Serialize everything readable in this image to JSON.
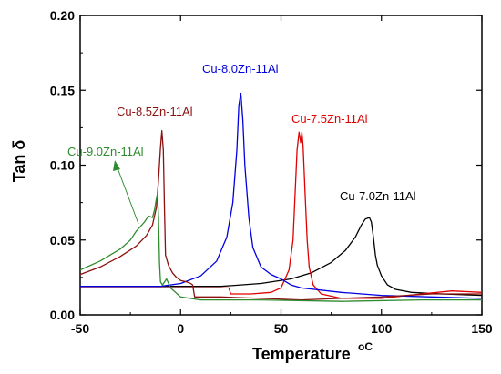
{
  "chart_data": {
    "type": "line",
    "title": "",
    "xlabel": "Temperature",
    "xlabel_unit": "oC",
    "ylabel": "Tan δ",
    "xlim": [
      -50,
      150
    ],
    "ylim": [
      0,
      0.2
    ],
    "xticks": [
      -50,
      0,
      50,
      100,
      150
    ],
    "yticks": [
      0.0,
      0.05,
      0.1,
      0.15,
      0.2
    ],
    "ytick_labels": [
      "0.00",
      "0.05",
      "0.10",
      "0.15",
      "0.20"
    ],
    "grid": false,
    "legend": "inline labels",
    "series": [
      {
        "name": "Cu-7.0Zn-11Al",
        "color": "#000000",
        "points": [
          [
            -50,
            0.019
          ],
          [
            -20,
            0.019
          ],
          [
            0,
            0.019
          ],
          [
            20,
            0.019
          ],
          [
            40,
            0.021
          ],
          [
            55,
            0.024
          ],
          [
            65,
            0.028
          ],
          [
            75,
            0.035
          ],
          [
            82,
            0.043
          ],
          [
            87,
            0.052
          ],
          [
            90,
            0.06
          ],
          [
            92,
            0.064
          ],
          [
            94,
            0.065
          ],
          [
            95,
            0.062
          ],
          [
            96,
            0.052
          ],
          [
            97,
            0.04
          ],
          [
            98,
            0.033
          ],
          [
            100,
            0.026
          ],
          [
            103,
            0.02
          ],
          [
            107,
            0.017
          ],
          [
            115,
            0.015
          ],
          [
            130,
            0.014
          ],
          [
            150,
            0.013
          ]
        ]
      },
      {
        "name": "Cu-7.5Zn-11Al",
        "color": "#e00000",
        "points": [
          [
            -50,
            0.018
          ],
          [
            -20,
            0.018
          ],
          [
            0,
            0.018
          ],
          [
            20,
            0.018
          ],
          [
            24,
            0.018
          ],
          [
            25,
            0.014
          ],
          [
            35,
            0.014
          ],
          [
            45,
            0.015
          ],
          [
            50,
            0.018
          ],
          [
            54,
            0.03
          ],
          [
            56,
            0.05
          ],
          [
            57,
            0.08
          ],
          [
            58,
            0.11
          ],
          [
            59,
            0.122
          ],
          [
            59.8,
            0.115
          ],
          [
            60.4,
            0.122
          ],
          [
            61,
            0.112
          ],
          [
            62,
            0.08
          ],
          [
            63,
            0.05
          ],
          [
            64,
            0.032
          ],
          [
            66,
            0.02
          ],
          [
            70,
            0.014
          ],
          [
            80,
            0.011
          ],
          [
            100,
            0.011
          ],
          [
            120,
            0.014
          ],
          [
            135,
            0.016
          ],
          [
            150,
            0.015
          ]
        ]
      },
      {
        "name": "Cu-8.0Zn-11Al",
        "color": "#0000e0",
        "points": [
          [
            -50,
            0.019
          ],
          [
            -30,
            0.019
          ],
          [
            -10,
            0.019
          ],
          [
            0,
            0.021
          ],
          [
            10,
            0.026
          ],
          [
            18,
            0.036
          ],
          [
            23,
            0.052
          ],
          [
            26,
            0.075
          ],
          [
            28,
            0.11
          ],
          [
            29,
            0.14
          ],
          [
            30,
            0.148
          ],
          [
            31,
            0.13
          ],
          [
            32,
            0.1
          ],
          [
            34,
            0.065
          ],
          [
            36,
            0.045
          ],
          [
            40,
            0.032
          ],
          [
            45,
            0.027
          ],
          [
            50,
            0.024
          ],
          [
            55,
            0.02
          ],
          [
            60,
            0.018
          ],
          [
            80,
            0.015
          ],
          [
            100,
            0.013
          ],
          [
            125,
            0.012
          ],
          [
            150,
            0.011
          ]
        ]
      },
      {
        "name": "Cu-8.5Zn-11Al",
        "color": "#8b1010",
        "points": [
          [
            -50,
            0.027
          ],
          [
            -40,
            0.032
          ],
          [
            -30,
            0.039
          ],
          [
            -22,
            0.046
          ],
          [
            -17,
            0.053
          ],
          [
            -14,
            0.06
          ],
          [
            -12,
            0.072
          ],
          [
            -11,
            0.09
          ],
          [
            -10,
            0.112
          ],
          [
            -9.3,
            0.123
          ],
          [
            -8.6,
            0.11
          ],
          [
            -8,
            0.07
          ],
          [
            -7.5,
            0.04
          ],
          [
            -6,
            0.033
          ],
          [
            -4,
            0.028
          ],
          [
            -2,
            0.025
          ],
          [
            0,
            0.023
          ],
          [
            3,
            0.022
          ],
          [
            5,
            0.021
          ],
          [
            6,
            0.02
          ],
          [
            7,
            0.012
          ],
          [
            20,
            0.012
          ],
          [
            40,
            0.011
          ],
          [
            60,
            0.01
          ],
          [
            80,
            0.011
          ],
          [
            100,
            0.012
          ],
          [
            125,
            0.014
          ],
          [
            150,
            0.014
          ]
        ]
      },
      {
        "name": "Cu-9.0Zn-11Al",
        "color": "#2e8b2e",
        "points": [
          [
            -50,
            0.03
          ],
          [
            -40,
            0.036
          ],
          [
            -30,
            0.044
          ],
          [
            -25,
            0.05
          ],
          [
            -22,
            0.056
          ],
          [
            -18,
            0.062
          ],
          [
            -16,
            0.066
          ],
          [
            -14,
            0.065
          ],
          [
            -13,
            0.07
          ],
          [
            -12,
            0.078
          ],
          [
            -11.5,
            0.081
          ],
          [
            -11,
            0.065
          ],
          [
            -10.5,
            0.035
          ],
          [
            -10,
            0.022
          ],
          [
            -9,
            0.02
          ],
          [
            -7,
            0.024
          ],
          [
            -5,
            0.018
          ],
          [
            0,
            0.012
          ],
          [
            10,
            0.01
          ],
          [
            40,
            0.01
          ],
          [
            80,
            0.009
          ],
          [
            120,
            0.01
          ],
          [
            150,
            0.01
          ]
        ]
      }
    ],
    "annotations": [
      {
        "text": "Cu-8.0Zn-11Al",
        "color": "#0000e0"
      },
      {
        "text": "Cu-8.5Zn-11Al",
        "color": "#8b1010"
      },
      {
        "text": "Cu-7.5Zn-11Al",
        "color": "#e00000"
      },
      {
        "text": "Cu-9.0Zn-11Al",
        "color": "#2e8b2e"
      },
      {
        "text": "Cu-7.0Zn-11Al",
        "color": "#000000"
      }
    ]
  }
}
